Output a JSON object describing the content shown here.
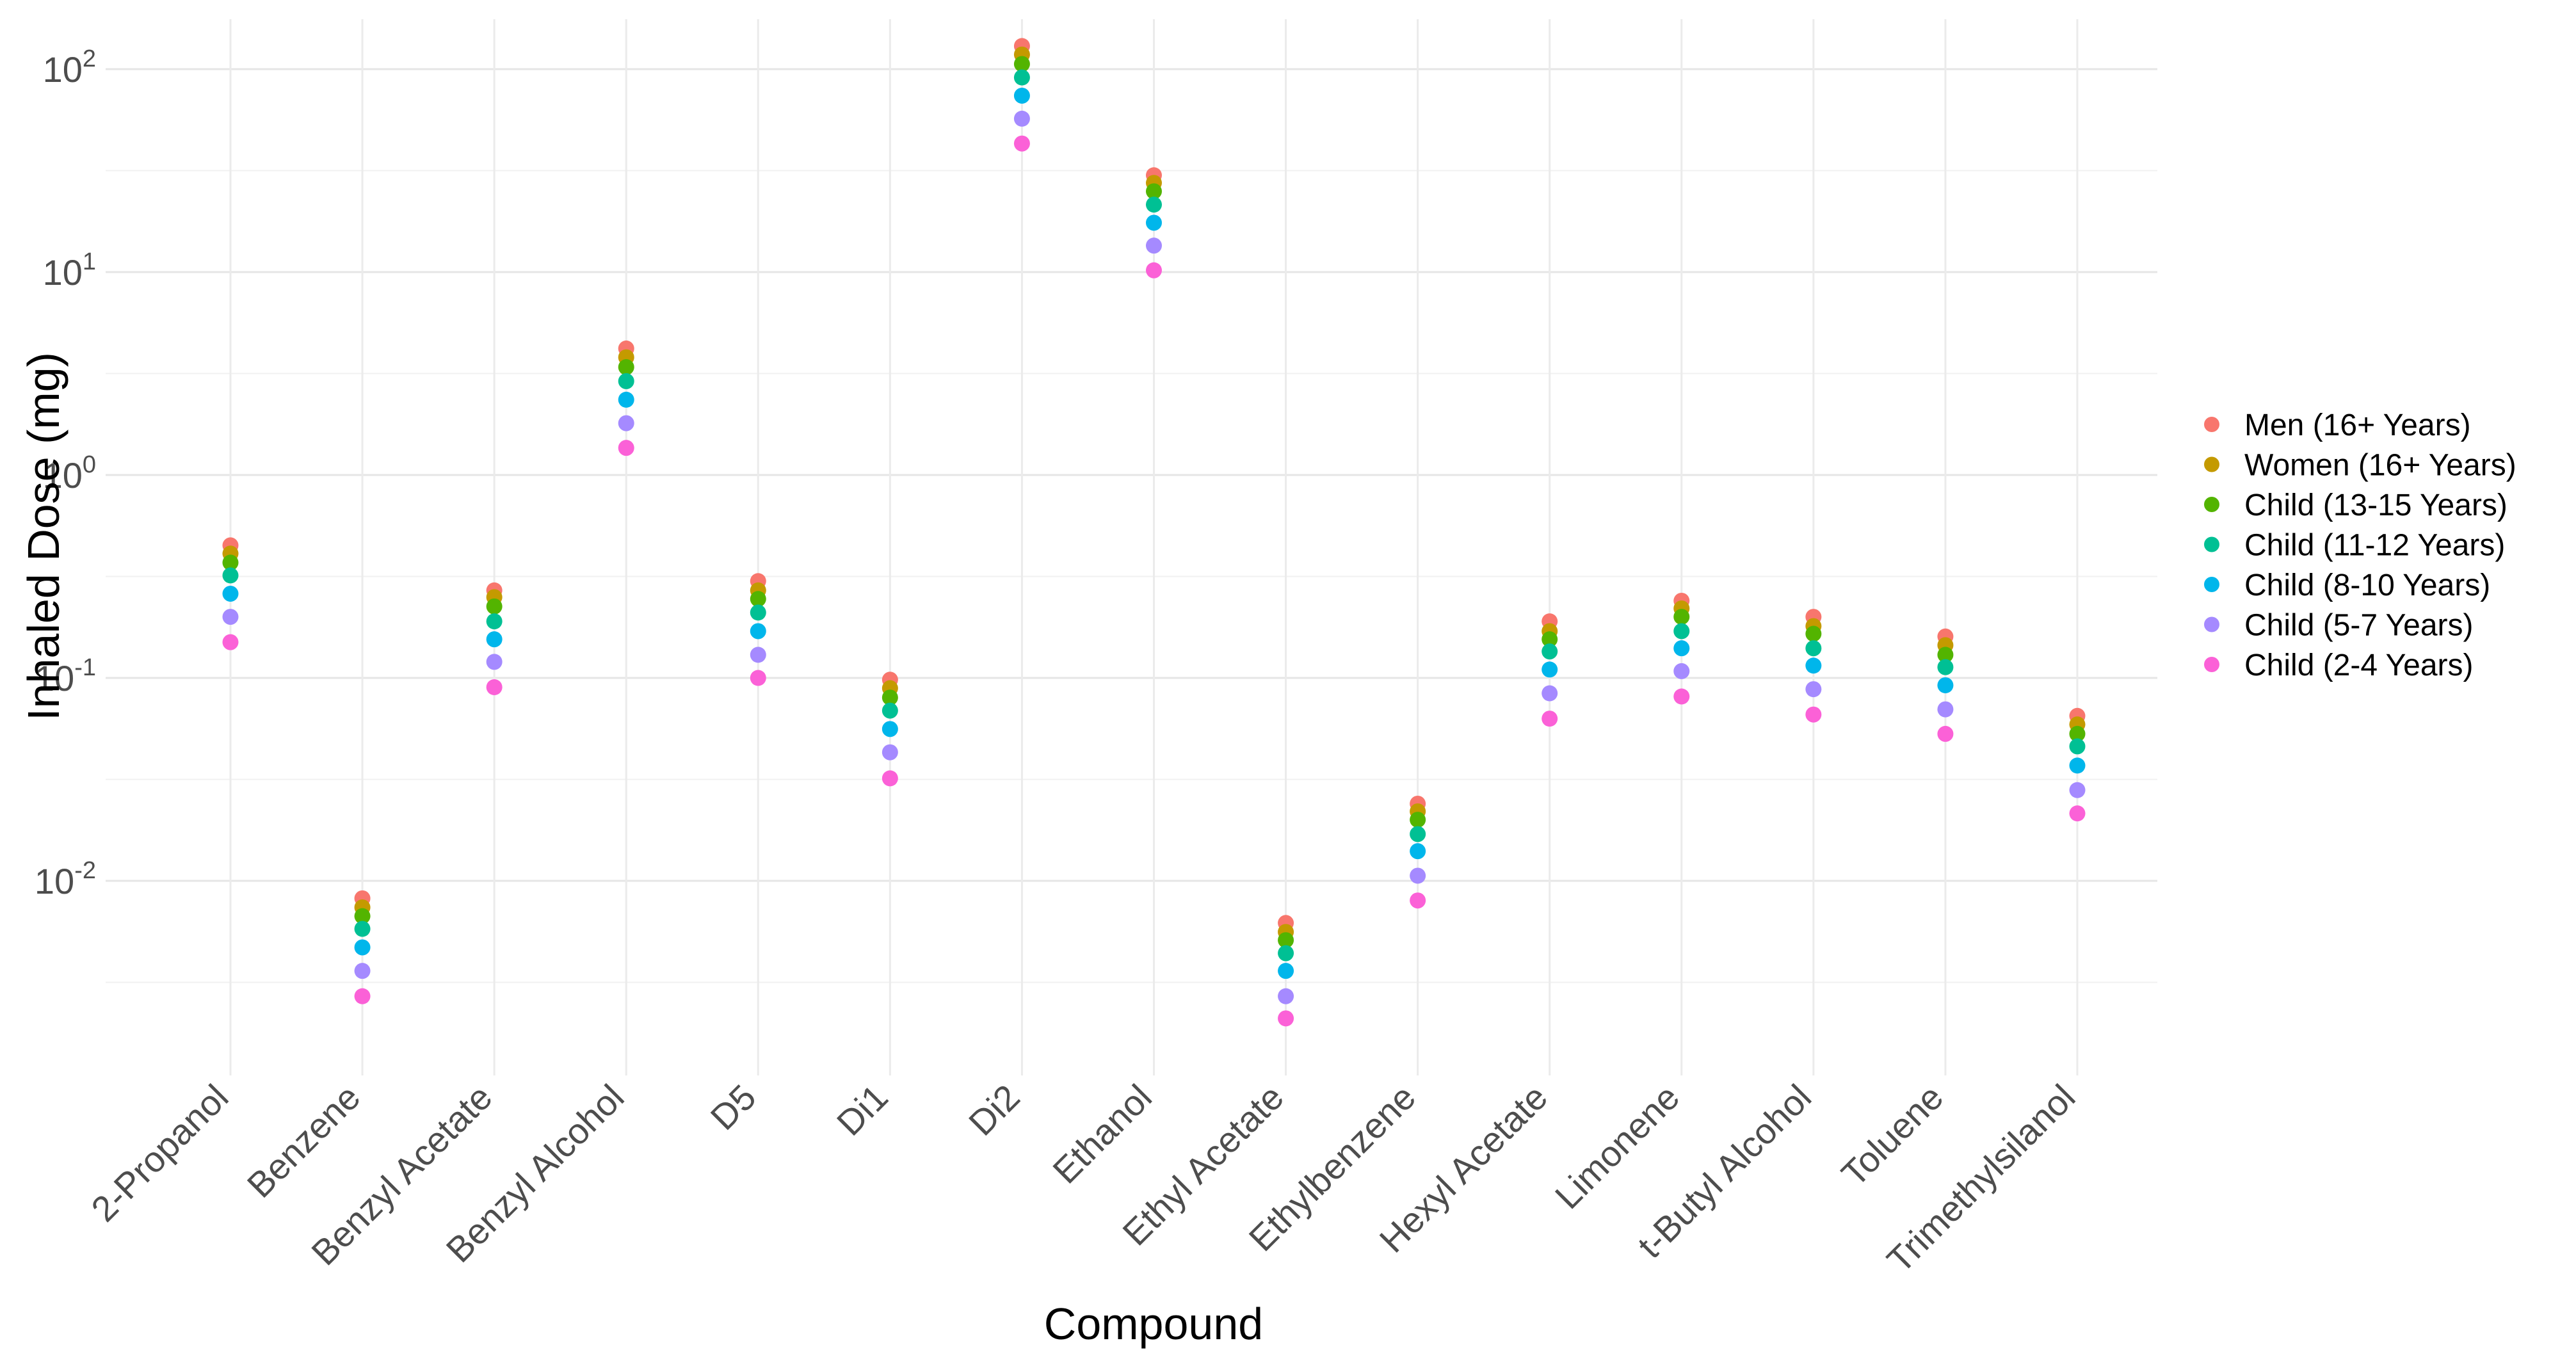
{
  "chart_data": {
    "type": "scatter",
    "title": "",
    "xlabel": "Compound",
    "ylabel": "Inhaled Dose (mg)",
    "yscale": "log10",
    "ylim": [
      0.0012,
      180
    ],
    "grid": true,
    "legend_position": "right",
    "categories": [
      "2-Propanol",
      "Benzene",
      "Benzyl Acetate",
      "Benzyl Alcohol",
      "D5",
      "Di1",
      "Di2",
      "Ethanol",
      "Ethyl Acetate",
      "Ethylbenzene",
      "Hexyl Acetate",
      "Limonene",
      "t-Butyl Alcohol",
      "Toluene",
      "Trimethylsilanol"
    ],
    "y_ticks": [
      {
        "value": 0.01,
        "base": "10",
        "exp": "-2"
      },
      {
        "value": 0.1,
        "base": "10",
        "exp": "-1"
      },
      {
        "value": 1,
        "base": "10",
        "exp": "0"
      },
      {
        "value": 10,
        "base": "10",
        "exp": "1"
      },
      {
        "value": 100,
        "base": "10",
        "exp": "2"
      }
    ],
    "series": [
      {
        "name": "Men (16+ Years)",
        "color": "#F8766D",
        "values": [
          0.45,
          0.0082,
          0.27,
          4.2,
          0.3,
          0.098,
          130,
          30,
          0.0062,
          0.024,
          0.19,
          0.24,
          0.2,
          0.16,
          0.065
        ]
      },
      {
        "name": "Women (16+ Years)",
        "color": "#C49A00",
        "values": [
          0.41,
          0.0074,
          0.25,
          3.8,
          0.27,
          0.089,
          118,
          27.5,
          0.0056,
          0.022,
          0.17,
          0.22,
          0.18,
          0.145,
          0.059
        ]
      },
      {
        "name": "Child (13-15 Years)",
        "color": "#53B400",
        "values": [
          0.37,
          0.0067,
          0.225,
          3.4,
          0.245,
          0.08,
          106,
          25,
          0.0051,
          0.02,
          0.155,
          0.2,
          0.165,
          0.13,
          0.053
        ]
      },
      {
        "name": "Child (11-12 Years)",
        "color": "#00C094",
        "values": [
          0.32,
          0.0058,
          0.19,
          2.9,
          0.21,
          0.069,
          91,
          21.5,
          0.0044,
          0.017,
          0.135,
          0.17,
          0.14,
          0.113,
          0.046
        ]
      },
      {
        "name": "Child (8-10 Years)",
        "color": "#00B6EB",
        "values": [
          0.26,
          0.0047,
          0.155,
          2.35,
          0.17,
          0.056,
          74,
          17.5,
          0.0036,
          0.014,
          0.11,
          0.14,
          0.115,
          0.092,
          0.037
        ]
      },
      {
        "name": "Child (5-7 Years)",
        "color": "#A58AFF",
        "values": [
          0.2,
          0.0036,
          0.12,
          1.8,
          0.13,
          0.043,
          57,
          13.5,
          0.0027,
          0.0106,
          0.084,
          0.108,
          0.088,
          0.07,
          0.028
        ]
      },
      {
        "name": "Child (2-4 Years)",
        "color": "#FB61D7",
        "values": [
          0.15,
          0.0027,
          0.09,
          1.36,
          0.1,
          0.032,
          43,
          10.2,
          0.0021,
          0.008,
          0.063,
          0.081,
          0.066,
          0.053,
          0.0215
        ]
      }
    ]
  }
}
